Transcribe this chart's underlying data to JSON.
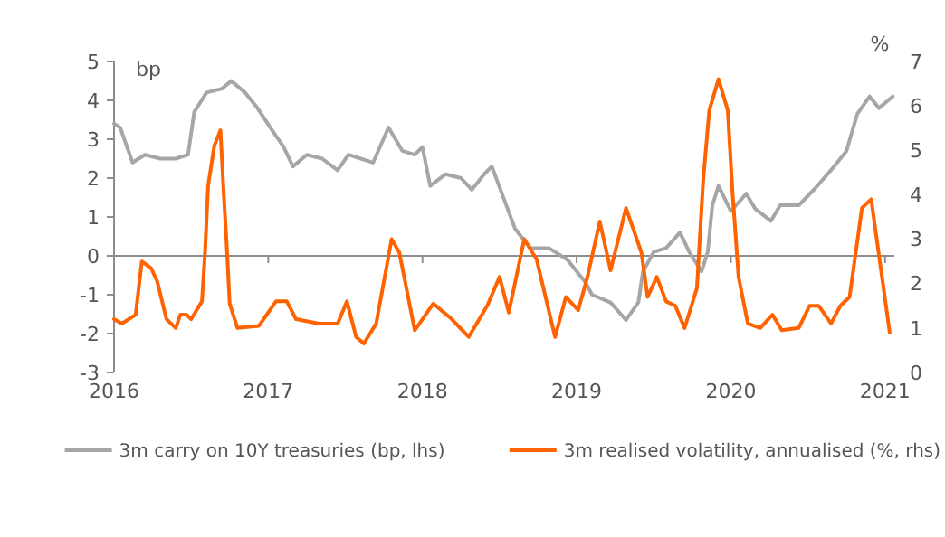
{
  "chart_data": {
    "type": "line",
    "ylabel": "bp",
    "y2label": "%",
    "xlim": [
      2016,
      2021.06
    ],
    "xticks": [
      2016,
      2017,
      2018,
      2019,
      2020,
      2021
    ],
    "ylim": [
      -3,
      5
    ],
    "yticks": [
      -3,
      -2,
      -1,
      0,
      1,
      2,
      3,
      4,
      5
    ],
    "y2lim": [
      0,
      7
    ],
    "y2ticks": [
      0,
      1,
      2,
      3,
      4,
      5,
      6,
      7
    ],
    "grid": false,
    "legend": "bottom",
    "ref_lines": [
      {
        "axis": "y",
        "value": 0,
        "color": "#8c8c8c"
      }
    ],
    "series": [
      {
        "name": "3m carry on 10Y treasuries (bp, lhs)",
        "color": "#a6a6a6",
        "x": [
          2016.0,
          2016.04,
          2016.12,
          2016.2,
          2016.3,
          2016.4,
          2016.48,
          2016.52,
          2016.6,
          2016.7,
          2016.76,
          2016.85,
          2016.93,
          2017.03,
          2017.1,
          2017.16,
          2017.25,
          2017.35,
          2017.45,
          2017.52,
          2017.6,
          2017.68,
          2017.78,
          2017.87,
          2017.95,
          2018.0,
          2018.05,
          2018.15,
          2018.25,
          2018.32,
          2018.4,
          2018.45,
          2018.6,
          2018.7,
          2018.82,
          2018.94,
          2019.06,
          2019.1,
          2019.22,
          2019.32,
          2019.4,
          2019.43,
          2019.5,
          2019.58,
          2019.67,
          2019.73,
          2019.81,
          2019.85,
          2019.88,
          2019.92,
          2020.0,
          2020.1,
          2020.16,
          2020.26,
          2020.32,
          2020.44,
          2020.55,
          2020.67,
          2020.75,
          2020.82,
          2020.9,
          2020.96,
          2021.05
        ],
        "values": [
          3.4,
          3.3,
          2.4,
          2.6,
          2.5,
          2.5,
          2.6,
          3.7,
          4.2,
          4.3,
          4.5,
          4.2,
          3.8,
          3.2,
          2.8,
          2.3,
          2.6,
          2.5,
          2.2,
          2.6,
          2.5,
          2.4,
          3.3,
          2.7,
          2.6,
          2.8,
          1.8,
          2.1,
          2.0,
          1.7,
          2.1,
          2.3,
          0.7,
          0.2,
          0.2,
          -0.1,
          -0.7,
          -1.0,
          -1.2,
          -1.65,
          -1.2,
          -0.4,
          0.1,
          0.2,
          0.6,
          0.1,
          -0.4,
          0.1,
          1.3,
          1.8,
          1.15,
          1.6,
          1.2,
          0.9,
          1.3,
          1.3,
          1.75,
          2.3,
          2.7,
          3.65,
          4.1,
          3.8,
          4.1
        ]
      },
      {
        "name": "3m realised volatility, annualised (%, rhs)",
        "color": "#ff6200",
        "axis": "y2",
        "x": [
          2016.0,
          2016.05,
          2016.14,
          2016.18,
          2016.24,
          2016.28,
          2016.34,
          2016.4,
          2016.43,
          2016.47,
          2016.5,
          2016.57,
          2016.59,
          2016.61,
          2016.65,
          2016.69,
          2016.71,
          2016.73,
          2016.75,
          2016.8,
          2016.94,
          2017.05,
          2017.12,
          2017.18,
          2017.33,
          2017.45,
          2017.51,
          2017.57,
          2017.62,
          2017.7,
          2017.8,
          2017.85,
          2017.95,
          2018.07,
          2018.19,
          2018.3,
          2018.42,
          2018.5,
          2018.56,
          2018.66,
          2018.74,
          2018.86,
          2018.93,
          2019.01,
          2019.07,
          2019.15,
          2019.22,
          2019.32,
          2019.42,
          2019.46,
          2019.52,
          2019.58,
          2019.64,
          2019.7,
          2019.78,
          2019.82,
          2019.86,
          2019.92,
          2019.98,
          2020.01,
          2020.05,
          2020.11,
          2020.19,
          2020.27,
          2020.33,
          2020.44,
          2020.51,
          2020.57,
          2020.65,
          2020.71,
          2020.77,
          2020.85,
          2020.91,
          2020.97,
          2021.03
        ],
        "values": [
          1.2,
          1.1,
          1.3,
          2.5,
          2.35,
          2.05,
          1.2,
          1.0,
          1.3,
          1.3,
          1.2,
          1.6,
          2.7,
          4.2,
          5.1,
          5.45,
          4.1,
          2.9,
          1.55,
          1.0,
          1.05,
          1.6,
          1.6,
          1.2,
          1.1,
          1.1,
          1.6,
          0.8,
          0.65,
          1.1,
          3.0,
          2.7,
          0.95,
          1.55,
          1.2,
          0.8,
          1.5,
          2.15,
          1.35,
          3.0,
          2.55,
          0.8,
          1.7,
          1.4,
          2.15,
          3.4,
          2.3,
          3.7,
          2.7,
          1.7,
          2.15,
          1.6,
          1.5,
          1.0,
          1.9,
          4.3,
          5.9,
          6.6,
          5.9,
          4.1,
          2.15,
          1.1,
          1.0,
          1.3,
          0.95,
          1.0,
          1.5,
          1.5,
          1.1,
          1.5,
          1.7,
          3.7,
          3.9,
          2.4,
          0.9
        ]
      }
    ]
  }
}
